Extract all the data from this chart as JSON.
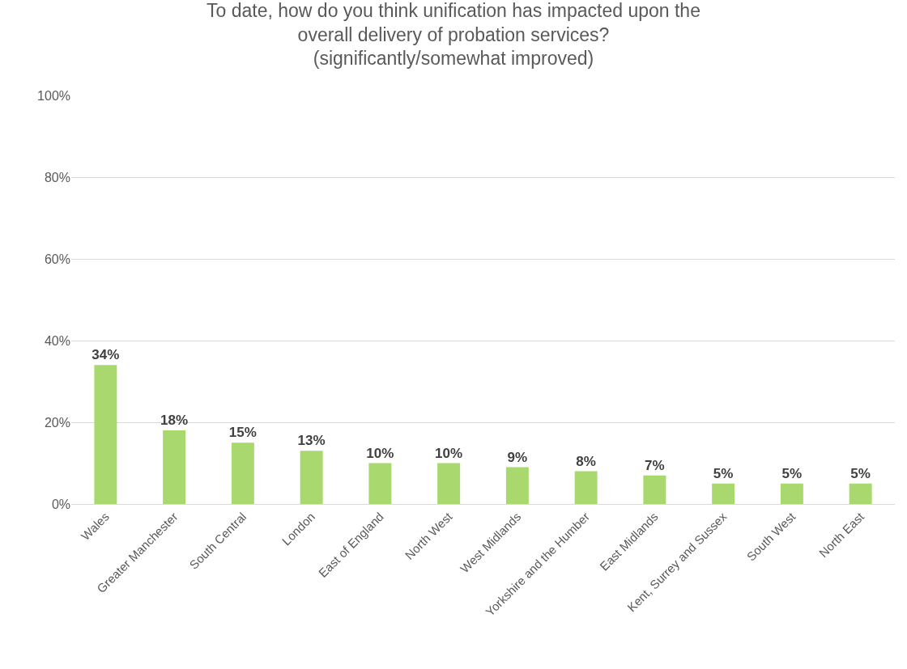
{
  "chart_data": {
    "type": "bar",
    "title": "To date, how do you think unification has impacted upon the overall delivery of probation services? (significantly/somewhat improved)",
    "categories": [
      "Wales",
      "Greater Manchester",
      "South Central",
      "London",
      "East of England",
      "North West",
      "West Midlands",
      "Yorkshire and the Humber",
      "East Midlands",
      "Kent, Surrey and Sussex",
      "South West",
      "North East"
    ],
    "values": [
      34,
      18,
      15,
      13,
      10,
      10,
      9,
      8,
      7,
      5,
      5,
      5
    ],
    "value_labels": [
      "34%",
      "18%",
      "15%",
      "13%",
      "10%",
      "10%",
      "9%",
      "8%",
      "7%",
      "5%",
      "5%",
      "5%"
    ],
    "color": "#a9d86e",
    "ylim": [
      0,
      100
    ],
    "yticks": [
      {
        "value": 0,
        "label": "0%"
      },
      {
        "value": 20,
        "label": "20%"
      },
      {
        "value": 40,
        "label": "40%"
      },
      {
        "value": 60,
        "label": "60%"
      },
      {
        "value": 80,
        "label": "80%"
      },
      {
        "value": 100,
        "label": "100%"
      }
    ],
    "grid": "y"
  }
}
